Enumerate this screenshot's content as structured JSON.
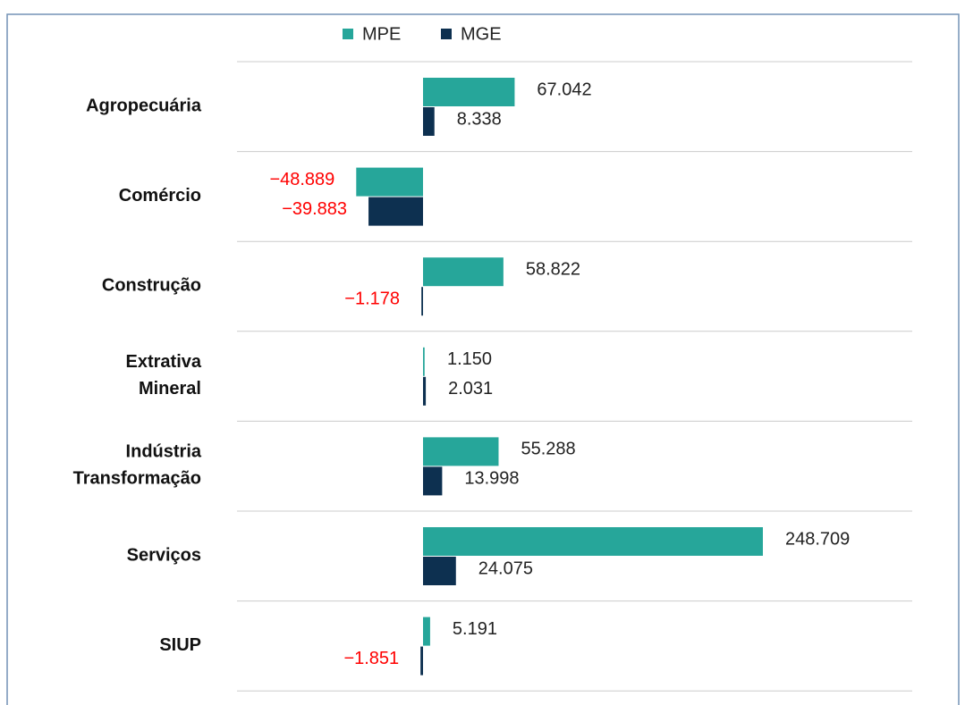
{
  "chart_data": {
    "type": "bar",
    "orientation": "horizontal",
    "categories": [
      "Agropecuária",
      "Comércio",
      "Construção",
      "Extrativa Mineral",
      "Indústria Transformação",
      "Serviços",
      "SIUP"
    ],
    "series": [
      {
        "name": "MPE",
        "color": "#26a69a",
        "values": [
          67042,
          -48889,
          58822,
          1150,
          55288,
          248709,
          5191
        ],
        "value_labels": [
          "67.042",
          "−48.889",
          "58.822",
          "1.150",
          "55.288",
          "248.709",
          "5.191"
        ]
      },
      {
        "name": "MGE",
        "color": "#0d3050",
        "values": [
          8338,
          -39883,
          -1178,
          2031,
          13998,
          24075,
          -1851
        ],
        "value_labels": [
          "8.338",
          "−39.883",
          "−1.178",
          "2.031",
          "13.998",
          "24.075",
          "−1.851"
        ]
      }
    ],
    "negative_label_color": "#ff0000",
    "legend": "top"
  }
}
